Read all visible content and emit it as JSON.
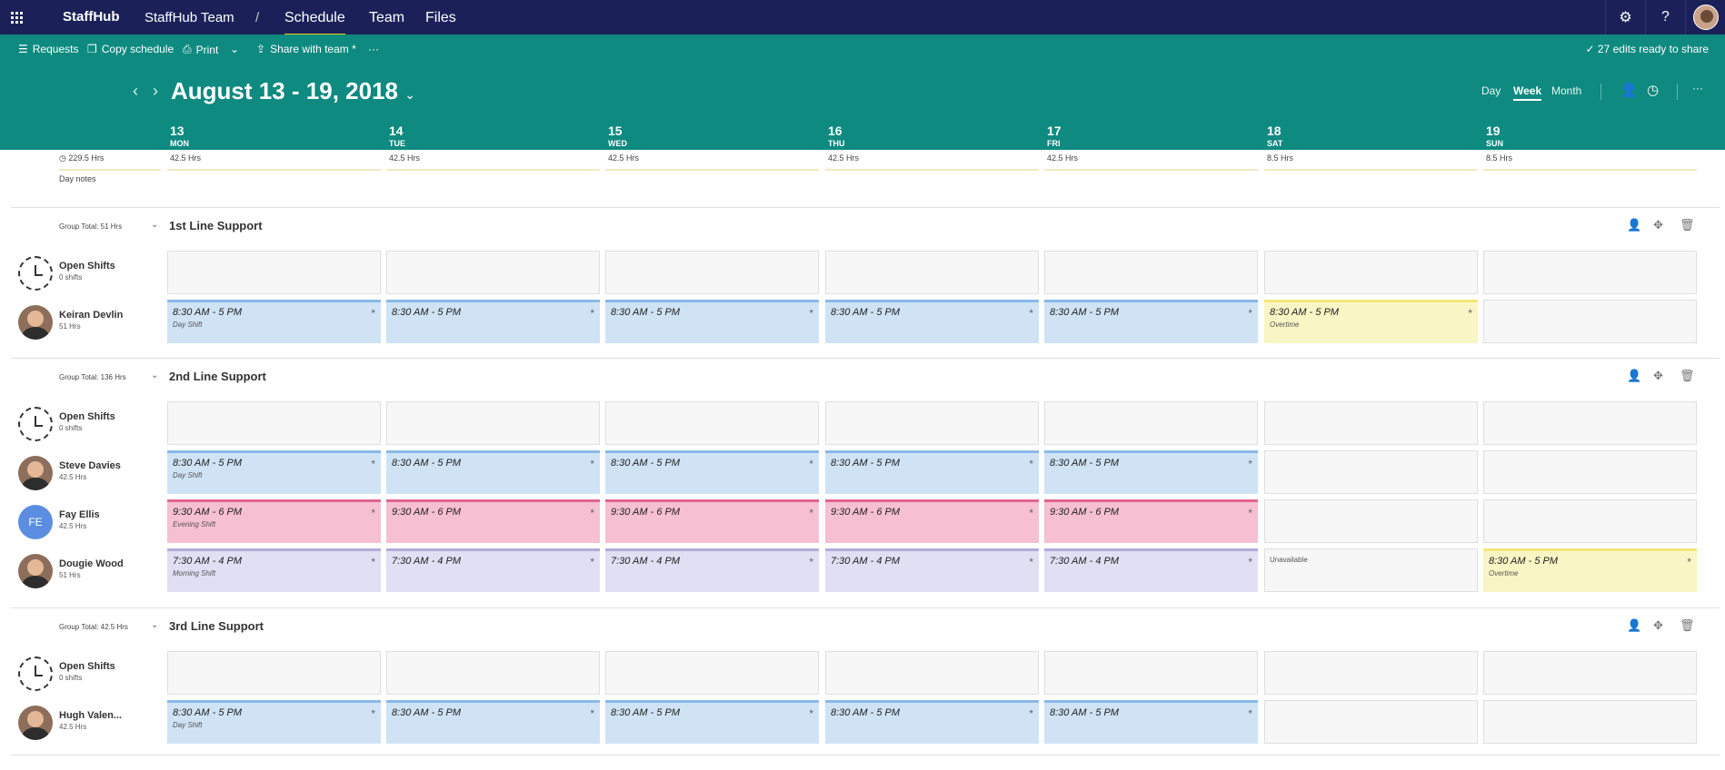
{
  "app": {
    "brand": "StaffHub",
    "team": "StaffHub Team",
    "separator": "/",
    "nav": [
      "Schedule",
      "Team",
      "Files"
    ],
    "top_icons": [
      "gear-icon",
      "help-icon"
    ],
    "help_glyph": "?"
  },
  "commands": {
    "requests": "Requests",
    "copy": "Copy schedule",
    "print": "Print",
    "share": "Share with team *",
    "more": "···",
    "edits": "27 edits ready to share"
  },
  "header": {
    "range": "August 13 - 19, 2018",
    "views": [
      "Day",
      "Week",
      "Month"
    ],
    "active_view": "Week",
    "more": "···"
  },
  "days": [
    {
      "num": "13",
      "dow": "MON",
      "hrs": "42.5 Hrs"
    },
    {
      "num": "14",
      "dow": "TUE",
      "hrs": "42.5 Hrs"
    },
    {
      "num": "15",
      "dow": "WED",
      "hrs": "42.5 Hrs"
    },
    {
      "num": "16",
      "dow": "THU",
      "hrs": "42.5 Hrs"
    },
    {
      "num": "17",
      "dow": "FRI",
      "hrs": "42.5 Hrs"
    },
    {
      "num": "18",
      "dow": "SAT",
      "hrs": "8.5 Hrs"
    },
    {
      "num": "19",
      "dow": "SUN",
      "hrs": "8.5 Hrs"
    }
  ],
  "summary": {
    "total": "229.5 Hrs",
    "day_notes": "Day notes"
  },
  "groups": [
    {
      "total": "Group Total: 51 Hrs",
      "name": "1st Line Support",
      "rows": [
        {
          "name": "Open Shifts",
          "sub": "0 shifts",
          "avatar": "open",
          "shifts": [
            null,
            null,
            null,
            null,
            null,
            null,
            null
          ]
        },
        {
          "name": "Keiran Devlin",
          "sub": "51 Hrs",
          "avatar": "photo",
          "shifts": [
            {
              "time": "8:30 AM - 5 PM",
              "label": "Day Shift",
              "style": "blue"
            },
            {
              "time": "8:30 AM - 5 PM",
              "label": "",
              "style": "blue"
            },
            {
              "time": "8:30 AM - 5 PM",
              "label": "",
              "style": "blue"
            },
            {
              "time": "8:30 AM - 5 PM",
              "label": "",
              "style": "blue"
            },
            {
              "time": "8:30 AM - 5 PM",
              "label": "",
              "style": "blue"
            },
            {
              "time": "8:30 AM - 5 PM",
              "label": "Overtime",
              "style": "yellow"
            },
            null
          ]
        }
      ]
    },
    {
      "total": "Group Total: 136 Hrs",
      "name": "2nd Line Support",
      "rows": [
        {
          "name": "Open Shifts",
          "sub": "0 shifts",
          "avatar": "open",
          "shifts": [
            null,
            null,
            null,
            null,
            null,
            null,
            null
          ]
        },
        {
          "name": "Steve Davies",
          "sub": "42.5 Hrs",
          "avatar": "photo",
          "shifts": [
            {
              "time": "8:30 AM - 5 PM",
              "label": "Day Shift",
              "style": "blue"
            },
            {
              "time": "8:30 AM - 5 PM",
              "label": "",
              "style": "blue"
            },
            {
              "time": "8:30 AM - 5 PM",
              "label": "",
              "style": "blue"
            },
            {
              "time": "8:30 AM - 5 PM",
              "label": "",
              "style": "blue"
            },
            {
              "time": "8:30 AM - 5 PM",
              "label": "",
              "style": "blue"
            },
            null,
            null
          ]
        },
        {
          "name": "Fay Ellis",
          "sub": "42.5 Hrs",
          "avatar": "initials",
          "initials": "FE",
          "shifts": [
            {
              "time": "9:30 AM - 6 PM",
              "label": "Evening Shift",
              "style": "pink"
            },
            {
              "time": "9:30 AM - 6 PM",
              "label": "",
              "style": "pink"
            },
            {
              "time": "9:30 AM - 6 PM",
              "label": "",
              "style": "pink"
            },
            {
              "time": "9:30 AM - 6 PM",
              "label": "",
              "style": "pink"
            },
            {
              "time": "9:30 AM - 6 PM",
              "label": "",
              "style": "pink"
            },
            null,
            null
          ]
        },
        {
          "name": "Dougie Wood",
          "sub": "51 Hrs",
          "avatar": "photo",
          "shifts": [
            {
              "time": "7:30 AM - 4 PM",
              "label": "Morning Shift",
              "style": "purple"
            },
            {
              "time": "7:30 AM - 4 PM",
              "label": "",
              "style": "purple"
            },
            {
              "time": "7:30 AM - 4 PM",
              "label": "",
              "style": "purple"
            },
            {
              "time": "7:30 AM - 4 PM",
              "label": "",
              "style": "purple"
            },
            {
              "time": "7:30 AM - 4 PM",
              "label": "",
              "style": "purple"
            },
            {
              "unavailable": "Unavailable"
            },
            {
              "time": "8:30 AM - 5 PM",
              "label": "Overtime",
              "style": "yellow"
            }
          ]
        }
      ]
    },
    {
      "total": "Group Total: 42.5 Hrs",
      "name": "3rd Line Support",
      "rows": [
        {
          "name": "Open Shifts",
          "sub": "0 shifts",
          "avatar": "open",
          "shifts": [
            null,
            null,
            null,
            null,
            null,
            null,
            null
          ]
        },
        {
          "name": "Hugh Valen...",
          "sub": "42.5 Hrs",
          "avatar": "photo",
          "shifts": [
            {
              "time": "8:30 AM - 5 PM",
              "label": "Day Shift",
              "style": "blue"
            },
            {
              "time": "8:30 AM - 5 PM",
              "label": "",
              "style": "blue"
            },
            {
              "time": "8:30 AM - 5 PM",
              "label": "",
              "style": "blue"
            },
            {
              "time": "8:30 AM - 5 PM",
              "label": "",
              "style": "blue"
            },
            {
              "time": "8:30 AM - 5 PM",
              "label": "",
              "style": "blue"
            },
            null,
            null
          ]
        }
      ]
    }
  ],
  "shift_colors": {
    "blue": {
      "bg": "#cfe3f5",
      "bar": "#8bb8e8"
    },
    "pink": {
      "bg": "#f6bfd2",
      "bar": "#e0668e"
    },
    "purple": {
      "bg": "#e1dff3",
      "bar": "#b1acd9"
    },
    "yellow": {
      "bg": "#f9f5c4",
      "bar": "#f2e67a"
    }
  },
  "colors": {
    "topbar": "#1b2158",
    "teal": "#0e8a80",
    "accent": "#f2c811"
  }
}
